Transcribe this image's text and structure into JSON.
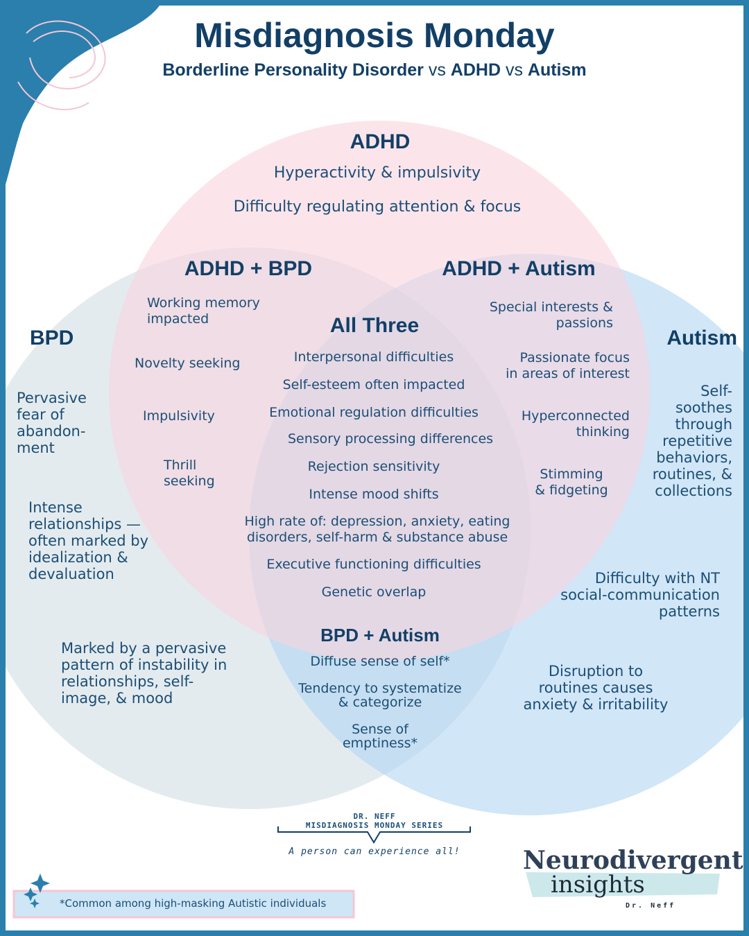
{
  "title": "Misdiagnosis Monday",
  "subtitle": {
    "part1": "Borderline Personality Disorder",
    "vs1": " vs ",
    "part2": "ADHD",
    "vs2": " vs ",
    "part3": "Autism"
  },
  "colors": {
    "frame": "#2a7fad",
    "adhd_circle": "#f8d3dd",
    "bpd_circle": "#d5e0e6",
    "autism_circle": "#b3d5f2",
    "heading": "#123f66",
    "text": "#1b4e75"
  },
  "diagram": {
    "adhd": {
      "title": "ADHD",
      "items": [
        "Hyperactivity & impulsivity",
        "Difficulty regulating attention & focus"
      ]
    },
    "adhd_bpd": {
      "title": "ADHD + BPD",
      "items": [
        "Working memory\nimpacted",
        "Novelty seeking",
        "Impulsivity",
        "Thrill\nseeking"
      ]
    },
    "adhd_autism": {
      "title": "ADHD + Autism",
      "items": [
        "Special interests &\npassions",
        "Passionate focus\nin areas of interest",
        "Hyperconnected\nthinking",
        "Stimming\n& fidgeting"
      ]
    },
    "bpd": {
      "title": "BPD",
      "items": [
        "Pervasive\nfear of\nabandon-\nment",
        "Intense\nrelationships —\noften marked by\nidealization &\ndevaluation",
        "Marked by a pervasive\npattern of instability in\nrelationships, self-\nimage, & mood"
      ]
    },
    "all_three": {
      "title": "All Three",
      "items": [
        "Interpersonal difficulties",
        "Self-esteem often impacted",
        "Emotional regulation difficulties",
        "Sensory processing differences",
        "Rejection sensitivity",
        "Intense mood shifts",
        "High rate of: depression, anxiety, eating\ndisorders, self-harm & substance abuse",
        "Executive functioning difficulties",
        "Genetic overlap"
      ]
    },
    "autism": {
      "title": "Autism",
      "items": [
        "Self-\nsoothes\nthrough\nrepetitive\nbehaviors,\nroutines, &\ncollections",
        "Difficulty with NT\nsocial-communication\npatterns",
        "Disruption to\nroutines causes\nanxiety & irritability"
      ]
    },
    "bpd_autism": {
      "title": "BPD + Autism",
      "items": [
        "Diffuse sense of self*",
        "Tendency to systematize\n& categorize",
        "Sense of\nemptiness*"
      ]
    }
  },
  "series_tag": {
    "author": "DR. NEFF",
    "series": "MISDIAGNOSIS MONDAY SERIES",
    "tagline": "A person can experience all!"
  },
  "footnote": "*Common among high-masking Autistic individuals",
  "brand": {
    "line1": "Neurodivergent",
    "line2": "insights",
    "signature": "Dr. Neff"
  }
}
